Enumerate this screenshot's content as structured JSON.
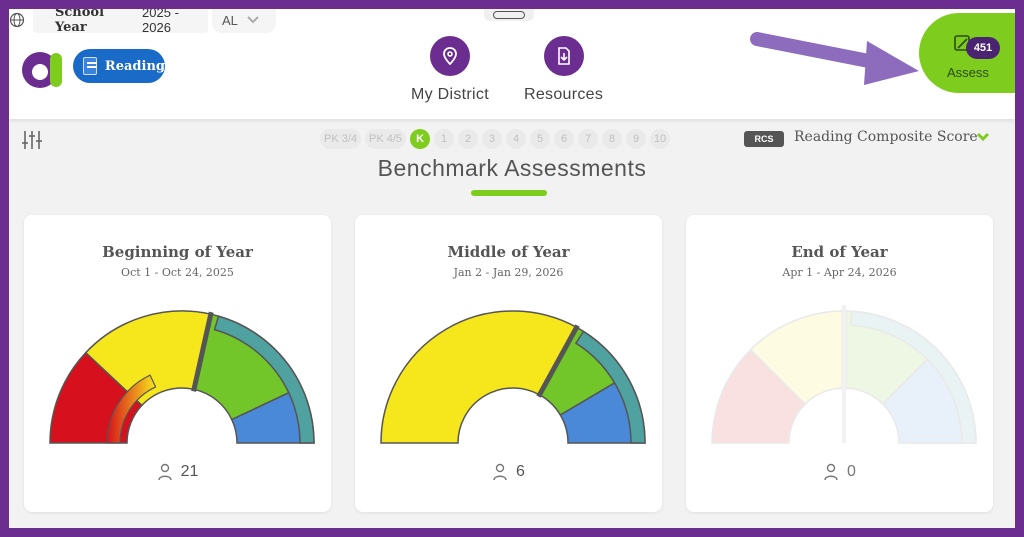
{
  "header": {
    "school_year_label": "School Year",
    "school_year_value": "2025 - 2026",
    "state": "AL",
    "subject": "Reading",
    "nav": [
      {
        "label": "My District",
        "icon": "location-pin-icon"
      },
      {
        "label": "Resources",
        "icon": "document-download-icon"
      }
    ],
    "assess": {
      "label": "Assess",
      "badge": "451"
    }
  },
  "grades": {
    "items": [
      "PK 3/4",
      "PK 4/5",
      "K",
      "1",
      "2",
      "3",
      "4",
      "5",
      "6",
      "7",
      "8",
      "9",
      "10"
    ],
    "selected": "K"
  },
  "score_selector": {
    "tag": "RCS",
    "label": "Reading Composite Score"
  },
  "section_title": "Benchmark Assessments",
  "cards": [
    {
      "title": "Beginning of Year",
      "dates": "Oct 1 - Oct 24, 2025",
      "count": "21",
      "distribution": {
        "red": 24,
        "yellow": 33,
        "green": 29,
        "blue": 14
      },
      "progress": 36
    },
    {
      "title": "Middle of Year",
      "dates": "Jan 2 - Jan 29, 2026",
      "count": "6",
      "distribution": {
        "red": 0,
        "yellow": 66,
        "green": 17,
        "blue": 17
      },
      "progress": 0
    },
    {
      "title": "End of Year",
      "dates": "Apr 1 - Apr 24, 2026",
      "count": "0",
      "distribution": {
        "red": 25,
        "yellow": 25,
        "green": 25,
        "blue": 25
      },
      "progress": 0,
      "empty": true
    }
  ],
  "colors": {
    "red": "#d6111d",
    "yellow": "#f6e61c",
    "green": "#72c62a",
    "blue": "#4a88d8",
    "teal": "#4fa2a0",
    "accent": "#7dcc1e",
    "brand_purple": "#6b2d8f"
  }
}
